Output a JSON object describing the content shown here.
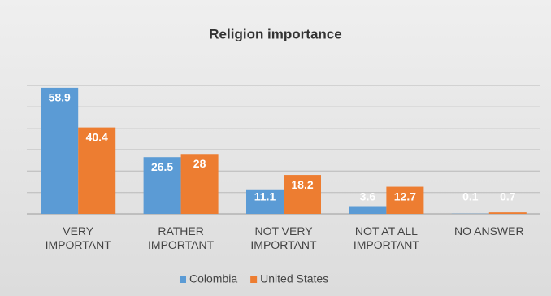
{
  "chart_data": {
    "type": "bar",
    "title": "Religion importance",
    "categories": [
      "VERY IMPORTANT",
      "RATHER IMPORTANT",
      "NOT VERY IMPORTANT",
      "NOT AT ALL IMPORTANT",
      "NO ANSWER"
    ],
    "series": [
      {
        "name": "Colombia",
        "color": "#5b9bd5",
        "values": [
          58.9,
          26.5,
          11.1,
          3.6,
          0.1
        ]
      },
      {
        "name": "United States",
        "color": "#ed7d31",
        "values": [
          40.4,
          28,
          18.2,
          12.7,
          0.7
        ]
      }
    ],
    "ylim": [
      0,
      60
    ],
    "yticks": [
      0,
      10,
      20,
      30,
      40,
      50,
      60
    ],
    "grid": true,
    "legend": "bottom"
  }
}
